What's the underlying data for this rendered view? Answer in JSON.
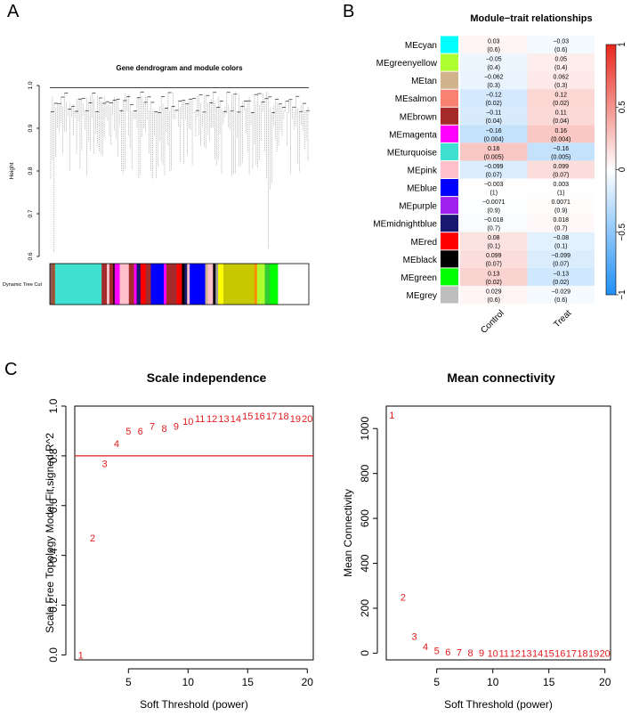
{
  "panels": {
    "a": "A",
    "b": "B",
    "c": "C"
  },
  "colors": {
    "highlight": "#e31a1c",
    "axis": "#000000",
    "heat_pos": "#e8271c",
    "heat_neg": "#1e8ff5",
    "heat_zero": "#ffffff"
  },
  "chart_data": [
    {
      "type": "dendrogram",
      "title": "Gene dendrogram and module colors",
      "ylabel": "Height",
      "ylim": [
        0.6,
        1.0
      ],
      "yticks": [
        "0.6",
        "0.7",
        "0.8",
        "0.9",
        "1.0"
      ],
      "color_bar_label": "Dynamic Tree Cut",
      "color_bar_segments": [
        {
          "color": "#8b5a5a",
          "frac": 0.01
        },
        {
          "color": "#a0522d",
          "frac": 0.01
        },
        {
          "color": "#40e0d0",
          "frac": 0.18
        },
        {
          "color": "#a52a2a",
          "frac": 0.02
        },
        {
          "color": "#ffc0cb",
          "frac": 0.01
        },
        {
          "color": "#a52a2a",
          "frac": 0.015
        },
        {
          "color": "#000000",
          "frac": 0.005
        },
        {
          "color": "#ff00ff",
          "frac": 0.02
        },
        {
          "color": "#ffc0cb",
          "frac": 0.035
        },
        {
          "color": "#a52a2a",
          "frac": 0.02
        },
        {
          "color": "#ff00ff",
          "frac": 0.01
        },
        {
          "color": "#191970",
          "frac": 0.015
        },
        {
          "color": "#ff0000",
          "frac": 0.02
        },
        {
          "color": "#a52a2a",
          "frac": 0.02
        },
        {
          "color": "#0000ff",
          "frac": 0.05
        },
        {
          "color": "#ff00ff",
          "frac": 0.01
        },
        {
          "color": "#a52a2a",
          "frac": 0.04
        },
        {
          "color": "#ff0000",
          "frac": 0.02
        },
        {
          "color": "#000000",
          "frac": 0.01
        },
        {
          "color": "#191970",
          "frac": 0.01
        },
        {
          "color": "#ffc0cb",
          "frac": 0.01
        },
        {
          "color": "#0000ff",
          "frac": 0.06
        },
        {
          "color": "#d2b48c",
          "frac": 0.01
        },
        {
          "color": "#ffc0cb",
          "frac": 0.02
        },
        {
          "color": "#000000",
          "frac": 0.01
        },
        {
          "color": "#a0a0a0",
          "frac": 0.01
        },
        {
          "color": "#ffff00",
          "frac": 0.02
        },
        {
          "color": "#c8c800",
          "frac": 0.12
        },
        {
          "color": "#ff8c00",
          "frac": 0.01
        },
        {
          "color": "#adff2f",
          "frac": 0.03
        },
        {
          "color": "#32cd32",
          "frac": 0.02
        },
        {
          "color": "#00ff00",
          "frac": 0.03
        }
      ]
    },
    {
      "type": "heatmap",
      "title": "Module−trait relationships",
      "columns": [
        "Control",
        "Treat"
      ],
      "rows": [
        {
          "name": "MEcyan",
          "color": "#00ffff",
          "values": [
            "0.03",
            "−0.03"
          ],
          "pvalues": [
            "(0.6)",
            "(0.6)"
          ],
          "r": [
            0.03,
            -0.03
          ]
        },
        {
          "name": "MEgreenyellow",
          "color": "#adff2f",
          "values": [
            "−0.05",
            "0.05"
          ],
          "pvalues": [
            "(0.4)",
            "(0.4)"
          ],
          "r": [
            -0.05,
            0.05
          ]
        },
        {
          "name": "MEtan",
          "color": "#d2b48c",
          "values": [
            "−0.062",
            "0.062"
          ],
          "pvalues": [
            "(0.3)",
            "(0.3)"
          ],
          "r": [
            -0.062,
            0.062
          ]
        },
        {
          "name": "MEsalmon",
          "color": "#fa8072",
          "values": [
            "−0.12",
            "0.12"
          ],
          "pvalues": [
            "(0.02)",
            "(0.02)"
          ],
          "r": [
            -0.12,
            0.12
          ]
        },
        {
          "name": "MEbrown",
          "color": "#a52a2a",
          "values": [
            "−0.11",
            "0.11"
          ],
          "pvalues": [
            "(0.04)",
            "(0.04)"
          ],
          "r": [
            -0.11,
            0.11
          ]
        },
        {
          "name": "MEmagenta",
          "color": "#ff00ff",
          "values": [
            "−0.16",
            "0.16"
          ],
          "pvalues": [
            "(0.004)",
            "(0.004)"
          ],
          "r": [
            -0.16,
            0.16
          ]
        },
        {
          "name": "MEturquoise",
          "color": "#40e0d0",
          "values": [
            "0.16",
            "−0.16"
          ],
          "pvalues": [
            "(0.005)",
            "(0.005)"
          ],
          "r": [
            0.16,
            -0.16
          ]
        },
        {
          "name": "MEpink",
          "color": "#ffc0cb",
          "values": [
            "−0.099",
            "0.099"
          ],
          "pvalues": [
            "(0.07)",
            "(0.07)"
          ],
          "r": [
            -0.099,
            0.099
          ]
        },
        {
          "name": "MEblue",
          "color": "#0000ff",
          "values": [
            "−0.003",
            "0.003"
          ],
          "pvalues": [
            "(1)",
            "(1)"
          ],
          "r": [
            -0.003,
            0.003
          ]
        },
        {
          "name": "MEpurple",
          "color": "#a020f0",
          "values": [
            "−0.0071",
            "0.0071"
          ],
          "pvalues": [
            "(0.9)",
            "(0.9)"
          ],
          "r": [
            -0.0071,
            0.0071
          ]
        },
        {
          "name": "MEmidnightblue",
          "color": "#191970",
          "values": [
            "−0.018",
            "0.018"
          ],
          "pvalues": [
            "(0.7)",
            "(0.7)"
          ],
          "r": [
            -0.018,
            0.018
          ]
        },
        {
          "name": "MEred",
          "color": "#ff0000",
          "values": [
            "0.08",
            "−0.08"
          ],
          "pvalues": [
            "(0.1)",
            "(0.1)"
          ],
          "r": [
            0.08,
            -0.08
          ]
        },
        {
          "name": "MEblack",
          "color": "#000000",
          "values": [
            "0.099",
            "−0.099"
          ],
          "pvalues": [
            "(0.07)",
            "(0.07)"
          ],
          "r": [
            0.099,
            -0.099
          ]
        },
        {
          "name": "MEgreen",
          "color": "#00ff00",
          "values": [
            "0.13",
            "−0.13"
          ],
          "pvalues": [
            "(0.02)",
            "(0.02)"
          ],
          "r": [
            0.13,
            -0.13
          ]
        },
        {
          "name": "MEgrey",
          "color": "#bebebe",
          "values": [
            "0.029",
            "−0.029"
          ],
          "pvalues": [
            "(0.6)",
            "(0.6)"
          ],
          "r": [
            0.029,
            -0.029
          ]
        }
      ],
      "legend_ticks": [
        "1",
        "0.5",
        "0",
        "−0.5",
        "−1"
      ],
      "legend_range": [
        -1,
        1
      ]
    },
    {
      "type": "scatter",
      "title": "Scale independence",
      "xlabel": "Soft Threshold (power)",
      "ylabel": "Scale Free Topology Model Fit,signed R^2",
      "xlim": [
        0.5,
        20.5
      ],
      "ylim": [
        -0.02,
        1.0
      ],
      "xticks": [
        5,
        10,
        15,
        20
      ],
      "yticks": [
        0.0,
        0.2,
        0.4,
        0.6,
        0.8,
        1.0
      ],
      "ytick_labels": [
        "0.0",
        "0.2",
        "0.4",
        "0.6",
        "0.8",
        "1.0"
      ],
      "hline": 0.8,
      "points": [
        {
          "label": "1",
          "x": 1,
          "y": 0.0
        },
        {
          "label": "2",
          "x": 2,
          "y": 0.47
        },
        {
          "label": "3",
          "x": 3,
          "y": 0.77
        },
        {
          "label": "4",
          "x": 4,
          "y": 0.85
        },
        {
          "label": "5",
          "x": 5,
          "y": 0.9
        },
        {
          "label": "6",
          "x": 6,
          "y": 0.9
        },
        {
          "label": "7",
          "x": 7,
          "y": 0.92
        },
        {
          "label": "8",
          "x": 8,
          "y": 0.91
        },
        {
          "label": "9",
          "x": 9,
          "y": 0.92
        },
        {
          "label": "10",
          "x": 10,
          "y": 0.94
        },
        {
          "label": "11",
          "x": 11,
          "y": 0.95
        },
        {
          "label": "12",
          "x": 12,
          "y": 0.95
        },
        {
          "label": "13",
          "x": 13,
          "y": 0.95
        },
        {
          "label": "14",
          "x": 14,
          "y": 0.95
        },
        {
          "label": "15",
          "x": 15,
          "y": 0.96
        },
        {
          "label": "16",
          "x": 16,
          "y": 0.96
        },
        {
          "label": "17",
          "x": 17,
          "y": 0.96
        },
        {
          "label": "18",
          "x": 18,
          "y": 0.96
        },
        {
          "label": "19",
          "x": 19,
          "y": 0.95
        },
        {
          "label": "20",
          "x": 20,
          "y": 0.95
        }
      ]
    },
    {
      "type": "scatter",
      "title": "Mean connectivity",
      "xlabel": "Soft Threshold (power)",
      "ylabel": "Mean Connectivity",
      "xlim": [
        0.5,
        20.5
      ],
      "ylim": [
        -30,
        1100
      ],
      "xticks": [
        5,
        10,
        15,
        20
      ],
      "yticks": [
        0,
        200,
        400,
        600,
        800,
        1000
      ],
      "ytick_labels": [
        "0",
        "200",
        "400",
        "600",
        "800",
        "1000"
      ],
      "points": [
        {
          "label": "1",
          "x": 1,
          "y": 1060
        },
        {
          "label": "2",
          "x": 2,
          "y": 250
        },
        {
          "label": "3",
          "x": 3,
          "y": 75
        },
        {
          "label": "4",
          "x": 4,
          "y": 30
        },
        {
          "label": "5",
          "x": 5,
          "y": 12
        },
        {
          "label": "6",
          "x": 6,
          "y": 6
        },
        {
          "label": "7",
          "x": 7,
          "y": 3
        },
        {
          "label": "8",
          "x": 8,
          "y": 2
        },
        {
          "label": "9",
          "x": 9,
          "y": 1
        },
        {
          "label": "10",
          "x": 10,
          "y": 0.5
        },
        {
          "label": "11",
          "x": 11,
          "y": 0.3
        },
        {
          "label": "12",
          "x": 12,
          "y": 0.2
        },
        {
          "label": "13",
          "x": 13,
          "y": 0.1
        },
        {
          "label": "14",
          "x": 14,
          "y": 0.1
        },
        {
          "label": "15",
          "x": 15,
          "y": 0.05
        },
        {
          "label": "16",
          "x": 16,
          "y": 0.03
        },
        {
          "label": "17",
          "x": 17,
          "y": 0.02
        },
        {
          "label": "18",
          "x": 18,
          "y": 0.02
        },
        {
          "label": "19",
          "x": 19,
          "y": 0.01
        },
        {
          "label": "20",
          "x": 20,
          "y": 0.01
        }
      ]
    }
  ]
}
